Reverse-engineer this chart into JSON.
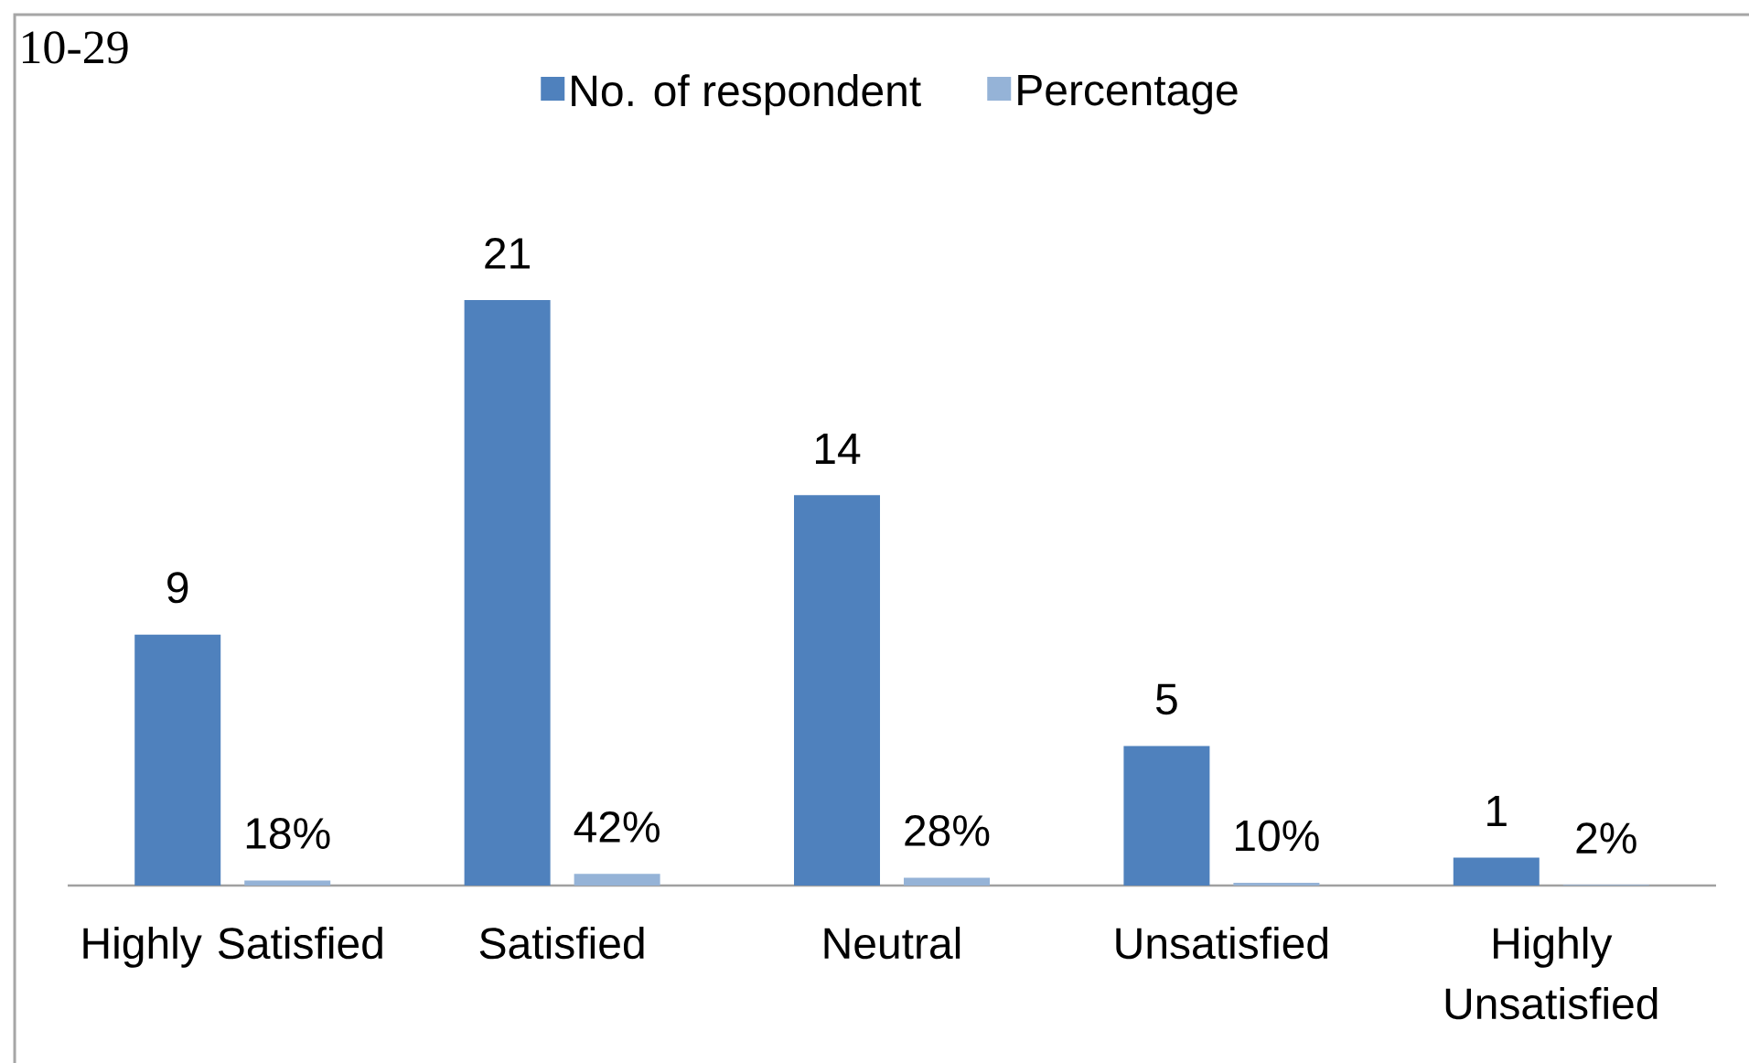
{
  "chart_data": {
    "type": "bar",
    "title": "10-29",
    "categories": [
      "Highly Satisfied",
      "Satisfied",
      "Neutral",
      "Unsatisfied",
      "Highly Unsatisfied"
    ],
    "series": [
      {
        "name": "No. of respondent",
        "color": "#4f81bd",
        "values": [
          9,
          21,
          14,
          5,
          1
        ],
        "value_labels": [
          "9",
          "21",
          "14",
          "5",
          "1"
        ]
      },
      {
        "name": "Percentage",
        "color": "#95b3d7",
        "values": [
          0.18,
          0.42,
          0.28,
          0.1,
          0.02
        ],
        "value_labels": [
          "18%",
          "42%",
          "28%",
          "10%",
          "2%"
        ]
      }
    ],
    "legend": "top",
    "tick_labels": "x"
  }
}
